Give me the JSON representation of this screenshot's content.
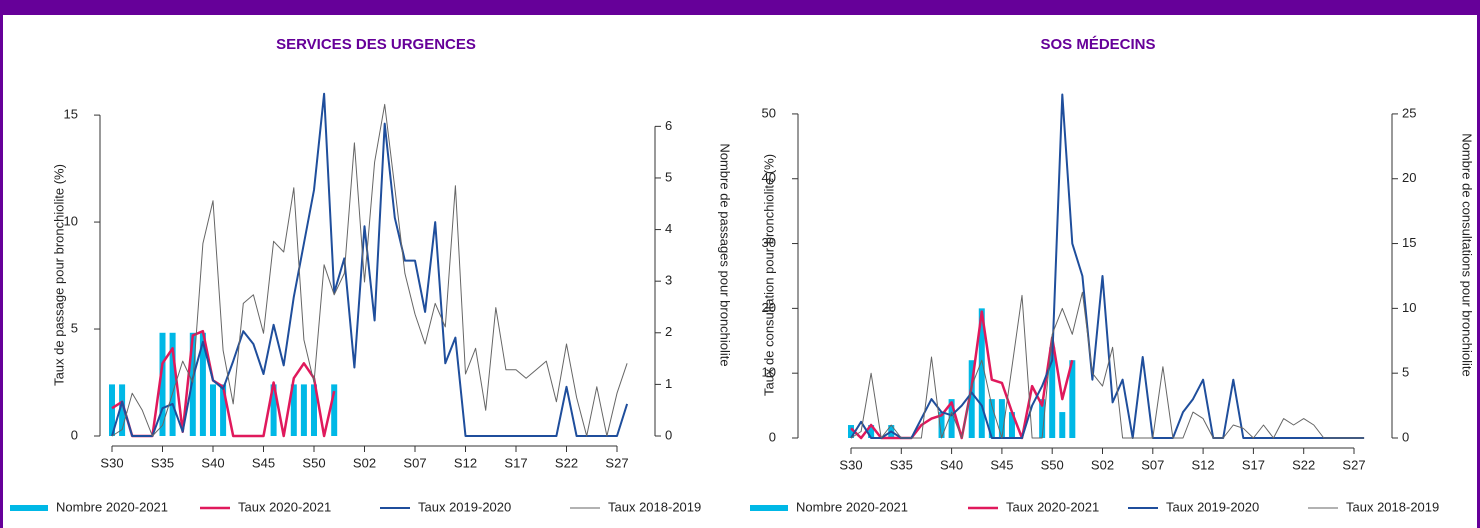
{
  "chart_data": [
    {
      "type": "combo",
      "title": "SERVICES DES URGENCES",
      "ylabel": "Taux de passage pour bronchiolite (%)",
      "y2label": "Nombre de passages pour bronchiolite",
      "categories": [
        "S30",
        null,
        null,
        null,
        null,
        "S35",
        null,
        null,
        null,
        null,
        "S40",
        null,
        null,
        null,
        null,
        "S45",
        null,
        null,
        null,
        null,
        "S50",
        null,
        null,
        null,
        null,
        "S02",
        null,
        null,
        null,
        null,
        "S07",
        null,
        null,
        null,
        null,
        "S12",
        null,
        null,
        null,
        null,
        "S17",
        null,
        null,
        null,
        null,
        "S22",
        null,
        null,
        null,
        null,
        "S27",
        null,
        null
      ],
      "ylim": [
        0,
        16.5
      ],
      "yticks": [
        0,
        5,
        10,
        15
      ],
      "y2lim": [
        0,
        6.84
      ],
      "y2ticks": [
        0,
        1,
        2,
        3,
        4,
        5,
        6
      ],
      "series": [
        {
          "name": "Nombre 2020-2021",
          "type": "bar",
          "axis": "y2",
          "color": "#00b8e6",
          "values": [
            1,
            1,
            0,
            0,
            0,
            2,
            2,
            0,
            2,
            2,
            1,
            1,
            0,
            0,
            0,
            0,
            1,
            0,
            1,
            1,
            1,
            0,
            1,
            null,
            null,
            null,
            null,
            null,
            null,
            null,
            null,
            null,
            null,
            null,
            null,
            null,
            null,
            null,
            null,
            null,
            null,
            null,
            null,
            null,
            null,
            null,
            null,
            null,
            null,
            null,
            null,
            null,
            null
          ]
        },
        {
          "name": "Taux 2020-2021",
          "type": "line",
          "axis": "y",
          "color": "#e0195c",
          "line_width": 2.5,
          "values": [
            1.3,
            1.6,
            0,
            0,
            0,
            3.4,
            4.1,
            0.2,
            4.7,
            4.9,
            2.6,
            2.3,
            0,
            0,
            0,
            0,
            2.5,
            0,
            2.7,
            3.4,
            2.7,
            0,
            2.1,
            null,
            null,
            null,
            null,
            null,
            null,
            null,
            null,
            null,
            null,
            null,
            null,
            null,
            null,
            null,
            null,
            null,
            null,
            null,
            null,
            null,
            null,
            null,
            null,
            null,
            null,
            null,
            null,
            null,
            null
          ]
        },
        {
          "name": "Taux 2019-2020",
          "type": "line",
          "axis": "y",
          "color": "#1f4e9c",
          "line_width": 2,
          "values": [
            0,
            1.6,
            0,
            0,
            0,
            1.3,
            1.5,
            0.2,
            2.7,
            4.4,
            2.6,
            2.2,
            3.5,
            4.9,
            4.3,
            2.9,
            5.2,
            3.3,
            6.5,
            9,
            11.5,
            16,
            6.7,
            8.3,
            3.2,
            9.8,
            5.4,
            14.6,
            10.2,
            8.2,
            8.2,
            5.8,
            10,
            3.4,
            4.6,
            0,
            0,
            0,
            0,
            0,
            0,
            0,
            0,
            0,
            0,
            2.3,
            0,
            0,
            0,
            0,
            0,
            1.5,
            null
          ]
        },
        {
          "name": "Taux 2018-2019",
          "type": "line",
          "axis": "y",
          "color": "#666666",
          "line_width": 1,
          "values": [
            0,
            0.3,
            2,
            1.2,
            0,
            0.5,
            2,
            3.5,
            2.5,
            9,
            11,
            4,
            1.5,
            6.2,
            6.6,
            4.8,
            9.1,
            8.6,
            11.6,
            4.5,
            2.5,
            8,
            6.6,
            7.6,
            13.7,
            7.2,
            12.8,
            15.5,
            11.6,
            7.6,
            5.7,
            4.3,
            6.2,
            5.1,
            11.7,
            2.9,
            4.1,
            1.2,
            6,
            3.1,
            3.1,
            2.7,
            3.1,
            3.5,
            1.6,
            4.3,
            1.8,
            0,
            2.3,
            0,
            2,
            3.4,
            null
          ]
        }
      ]
    },
    {
      "type": "combo",
      "title": "SOS MÉDECINS",
      "ylabel": "Taux de consultation pour bronchiolite (%)",
      "y2label": "Nombre de consultations pour bronchiolite",
      "categories": [
        "S30",
        null,
        null,
        null,
        null,
        "S35",
        null,
        null,
        null,
        null,
        "S40",
        null,
        null,
        null,
        null,
        "S45",
        null,
        null,
        null,
        null,
        "S50",
        null,
        null,
        null,
        null,
        "S02",
        null,
        null,
        null,
        null,
        "S07",
        null,
        null,
        null,
        null,
        "S12",
        null,
        null,
        null,
        null,
        "S17",
        null,
        null,
        null,
        null,
        "S22",
        null,
        null,
        null,
        null,
        "S27",
        null,
        null
      ],
      "ylim": [
        0,
        54
      ],
      "yticks": [
        0,
        10,
        20,
        30,
        40,
        50
      ],
      "y2lim": [
        0,
        27
      ],
      "y2ticks": [
        0,
        5,
        10,
        15,
        20,
        25
      ],
      "series": [
        {
          "name": "Nombre 2020-2021",
          "type": "bar",
          "axis": "y2",
          "color": "#00b8e6",
          "values": [
            1,
            0,
            1,
            0,
            1,
            0,
            0,
            0,
            0,
            2,
            3,
            0,
            6,
            10,
            3,
            3,
            2,
            0,
            0,
            3,
            7,
            2,
            6,
            null,
            null,
            null,
            null,
            null,
            null,
            null,
            null,
            null,
            null,
            null,
            null,
            null,
            null,
            null,
            null,
            null,
            null,
            null,
            null,
            null,
            null,
            null,
            null,
            null,
            null,
            null,
            null,
            null,
            null
          ]
        },
        {
          "name": "Taux 2020-2021",
          "type": "line",
          "axis": "y",
          "color": "#e0195c",
          "line_width": 2.5,
          "values": [
            1.5,
            0,
            2,
            0,
            0,
            0,
            0,
            2,
            3,
            3.5,
            5.5,
            0,
            8,
            19.5,
            9,
            8.5,
            4,
            0,
            8,
            5,
            15.5,
            6,
            12,
            null,
            null,
            null,
            null,
            null,
            null,
            null,
            null,
            null,
            null,
            null,
            null,
            null,
            null,
            null,
            null,
            null,
            null,
            null,
            null,
            null,
            null,
            null,
            null,
            null,
            null,
            null,
            null,
            null,
            null
          ]
        },
        {
          "name": "Taux 2019-2020",
          "type": "line",
          "axis": "y",
          "color": "#1f4e9c",
          "line_width": 2,
          "values": [
            0,
            2.5,
            0,
            0,
            1,
            0,
            0,
            3,
            6,
            4,
            3.5,
            5,
            7,
            5,
            0,
            0,
            0,
            0,
            5,
            8,
            12,
            53,
            30,
            25,
            9,
            25,
            5.5,
            9,
            0,
            12.5,
            0,
            0,
            0,
            4,
            6,
            9,
            0,
            0,
            9,
            0,
            0,
            0,
            0,
            0,
            0,
            0,
            0,
            0,
            0,
            0,
            0,
            0,
            null
          ]
        },
        {
          "name": "Taux 2018-2019",
          "type": "line",
          "axis": "y",
          "color": "#666666",
          "line_width": 1,
          "values": [
            0,
            1,
            10,
            0,
            2,
            0,
            0,
            0,
            12.5,
            0,
            4,
            0,
            8,
            12,
            5,
            0,
            11,
            22,
            0,
            0,
            16,
            20,
            16,
            22.5,
            10,
            8,
            14,
            0,
            0,
            0,
            0,
            11,
            0,
            0,
            4,
            3,
            0,
            0,
            2,
            1.5,
            0,
            2,
            0,
            3,
            2,
            3,
            2,
            0,
            0,
            0,
            0,
            0,
            null
          ]
        }
      ]
    }
  ]
}
